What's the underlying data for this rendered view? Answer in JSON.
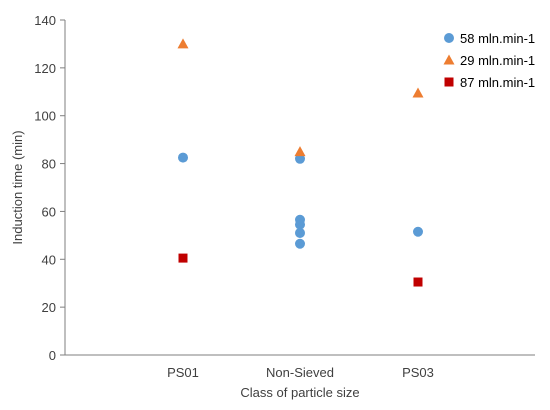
{
  "chart_data": {
    "type": "scatter",
    "categories": [
      "PS01",
      "Non-Sieved",
      "PS03"
    ],
    "xlabel": "Class of particle size",
    "ylabel": "Induction time (min)",
    "ylim": [
      0,
      140
    ],
    "yticks": [
      0,
      20,
      40,
      60,
      80,
      100,
      120,
      140
    ],
    "grid": false,
    "legend_position": "top-right",
    "series": [
      {
        "name": "58 mln.min-1",
        "marker": "circle",
        "color": "#5B9BD5",
        "points": [
          {
            "category": "PS01",
            "value": 82.5
          },
          {
            "category": "Non-Sieved",
            "value": 82
          },
          {
            "category": "Non-Sieved",
            "value": 56.5
          },
          {
            "category": "Non-Sieved",
            "value": 54.5
          },
          {
            "category": "Non-Sieved",
            "value": 51
          },
          {
            "category": "Non-Sieved",
            "value": 46.5
          },
          {
            "category": "PS03",
            "value": 51.5
          }
        ]
      },
      {
        "name": "29 mln.min-1",
        "marker": "triangle",
        "color": "#ED7D31",
        "points": [
          {
            "category": "PS01",
            "value": 130
          },
          {
            "category": "Non-Sieved",
            "value": 85
          },
          {
            "category": "PS03",
            "value": 109.5
          }
        ]
      },
      {
        "name": "87 mln.min-1",
        "marker": "square",
        "color": "#C00000",
        "points": [
          {
            "category": "PS01",
            "value": 40.5
          },
          {
            "category": "PS03",
            "value": 30.5
          }
        ]
      }
    ]
  }
}
